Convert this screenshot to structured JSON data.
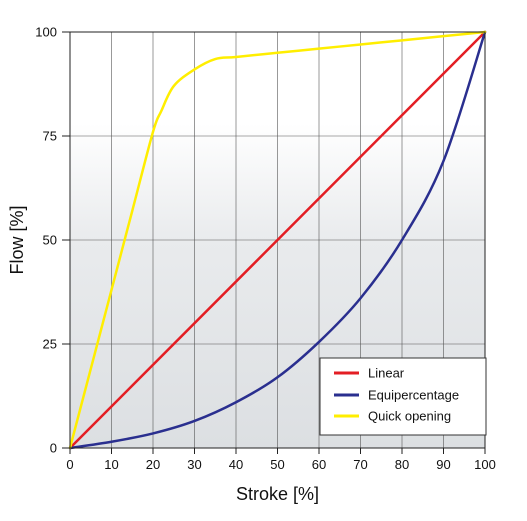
{
  "chart_data": {
    "type": "line",
    "title": "",
    "xlabel": "Stroke [%]",
    "ylabel": "Flow [%]",
    "xlim": [
      0,
      100
    ],
    "ylim": [
      0,
      100
    ],
    "x_ticks": [
      "0",
      "10",
      "20",
      "30",
      "40",
      "50",
      "60",
      "70",
      "80",
      "90",
      "100"
    ],
    "y_ticks": [
      "0",
      "25",
      "50",
      "75",
      "100"
    ],
    "grid": true,
    "legend_position": "bottom-right",
    "series": [
      {
        "name": "Linear",
        "color": "#e31e24",
        "x": [
          0,
          100
        ],
        "y": [
          0,
          100
        ]
      },
      {
        "name": "Equipercentage",
        "color": "#2a2f8f",
        "x": [
          0,
          10,
          20,
          30,
          40,
          50,
          60,
          70,
          80,
          90,
          100
        ],
        "y": [
          0,
          1.5,
          3.5,
          6.5,
          11,
          17,
          25.5,
          36,
          50,
          69,
          100
        ]
      },
      {
        "name": "Quick opening",
        "color": "#ffee00",
        "x": [
          0,
          5,
          10,
          15,
          20,
          22,
          25,
          30,
          35,
          40,
          50,
          60,
          70,
          80,
          90,
          100
        ],
        "y": [
          0,
          19,
          38,
          57,
          76,
          81,
          87,
          91,
          93.5,
          94,
          95,
          96,
          97,
          98,
          99,
          100
        ]
      }
    ]
  }
}
